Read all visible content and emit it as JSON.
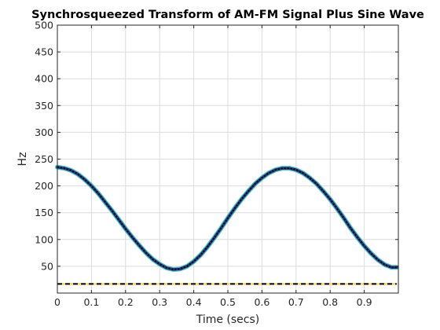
{
  "chart_data": {
    "type": "line",
    "title": "Synchrosqueezed Transform of AM-FM Signal Plus Sine Wave",
    "xlabel": "Time (secs)",
    "ylabel": "Hz",
    "xlim": [
      0,
      1
    ],
    "ylim": [
      0,
      500
    ],
    "grid": true,
    "xticks": [
      0,
      0.1,
      0.2,
      0.3,
      0.4,
      0.5,
      0.6,
      0.7,
      0.8,
      0.9
    ],
    "xtick_labels": [
      "0",
      "0.1",
      "0.2",
      "0.3",
      "0.4",
      "0.5",
      "0.6",
      "0.7",
      "0.8",
      "0.9"
    ],
    "yticks": [
      50,
      100,
      150,
      200,
      250,
      300,
      350,
      400,
      450,
      500
    ],
    "ytick_labels": [
      "50",
      "100",
      "150",
      "200",
      "250",
      "300",
      "350",
      "400",
      "450",
      "500"
    ],
    "series": [
      {
        "color": "#1f3a8a",
        "x": [
          0.0,
          0.02,
          0.04,
          0.06,
          0.08,
          0.1,
          0.12,
          0.14,
          0.16,
          0.18,
          0.2,
          0.22,
          0.24,
          0.26,
          0.28,
          0.3,
          0.32,
          0.34,
          0.36,
          0.38,
          0.4,
          0.42,
          0.44,
          0.46,
          0.48,
          0.5,
          0.52,
          0.54,
          0.56,
          0.58,
          0.6,
          0.62,
          0.64,
          0.66,
          0.68,
          0.7,
          0.72,
          0.74,
          0.76,
          0.78,
          0.8,
          0.82,
          0.84,
          0.86,
          0.88,
          0.9,
          0.92,
          0.94,
          0.96,
          0.98,
          0.995
        ],
        "y": [
          235,
          233,
          229,
          222,
          212,
          200,
          186,
          170,
          154,
          137,
          120,
          104,
          89,
          75,
          63,
          54,
          47,
          44,
          45,
          50,
          59,
          71,
          86,
          103,
          121,
          140,
          158,
          175,
          190,
          204,
          215,
          224,
          230,
          233,
          233,
          230,
          224,
          215,
          204,
          190,
          175,
          158,
          140,
          121,
          104,
          88,
          74,
          62,
          53,
          48,
          48
        ]
      },
      {
        "color": "#000000",
        "dashed": true,
        "x": [
          0.0,
          0.995
        ],
        "y": [
          17,
          17
        ]
      }
    ]
  }
}
